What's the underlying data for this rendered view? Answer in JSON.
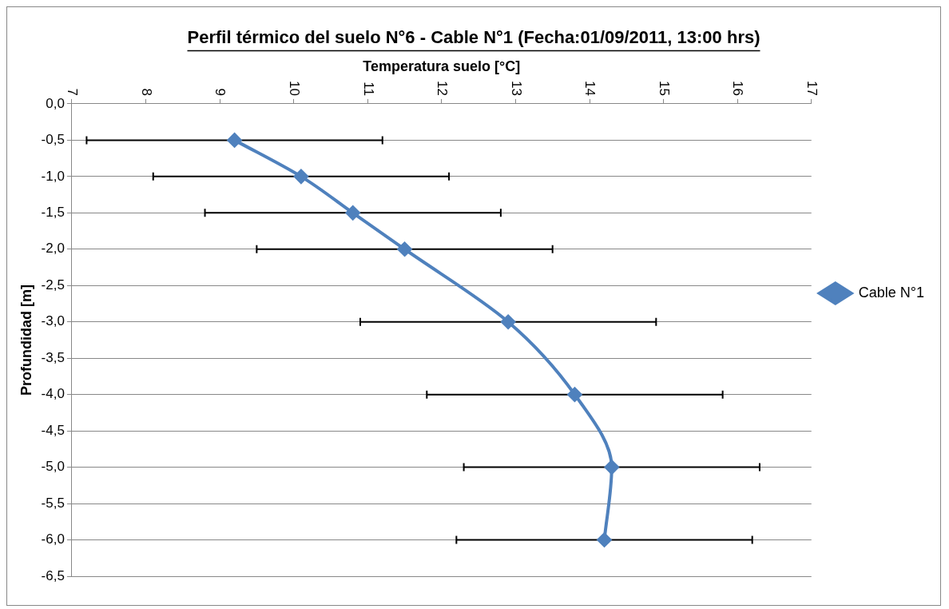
{
  "chart_data": {
    "type": "line",
    "title": "Perfil térmico del suelo N°6 - Cable N°1 (Fecha:01/09/2011, 13:00 hrs)",
    "xlabel": "Temperatura suelo [°C]",
    "ylabel": "Profundidad [m]",
    "series": [
      {
        "name": "Cable N°1",
        "color": "#4f81bd",
        "x": [
          9.2,
          10.1,
          10.8,
          11.5,
          12.9,
          13.8,
          14.3,
          14.2
        ],
        "values": [
          -0.5,
          -1.0,
          -1.5,
          -2.0,
          -3.0,
          -4.0,
          -5.0,
          -6.0
        ],
        "xerrors": [
          2,
          2,
          2,
          2,
          2,
          2,
          2,
          2
        ]
      }
    ],
    "xlim": [
      7,
      17
    ],
    "xticks": [
      7,
      8,
      9,
      10,
      11,
      12,
      13,
      14,
      15,
      16,
      17
    ],
    "ylim": [
      -6.5,
      0
    ],
    "yticks": [
      {
        "value": 0,
        "label": "0,0"
      },
      {
        "value": -0.5,
        "label": "-0,5"
      },
      {
        "value": -1,
        "label": "-1,0"
      },
      {
        "value": -1.5,
        "label": "-1,5"
      },
      {
        "value": -2,
        "label": "-2,0"
      },
      {
        "value": -2.5,
        "label": "-2,5"
      },
      {
        "value": -3,
        "label": "-3,0"
      },
      {
        "value": -3.5,
        "label": "-3,5"
      },
      {
        "value": -4,
        "label": "-4,0"
      },
      {
        "value": -4.5,
        "label": "-4,5"
      },
      {
        "value": -5,
        "label": "-5,0"
      },
      {
        "value": -5.5,
        "label": "-5,5"
      },
      {
        "value": -6,
        "label": "-6,0"
      },
      {
        "value": -6.5,
        "label": "-6,5"
      }
    ],
    "grid": "y",
    "legend": "right",
    "marker": "diamond",
    "line_style": "solid"
  }
}
